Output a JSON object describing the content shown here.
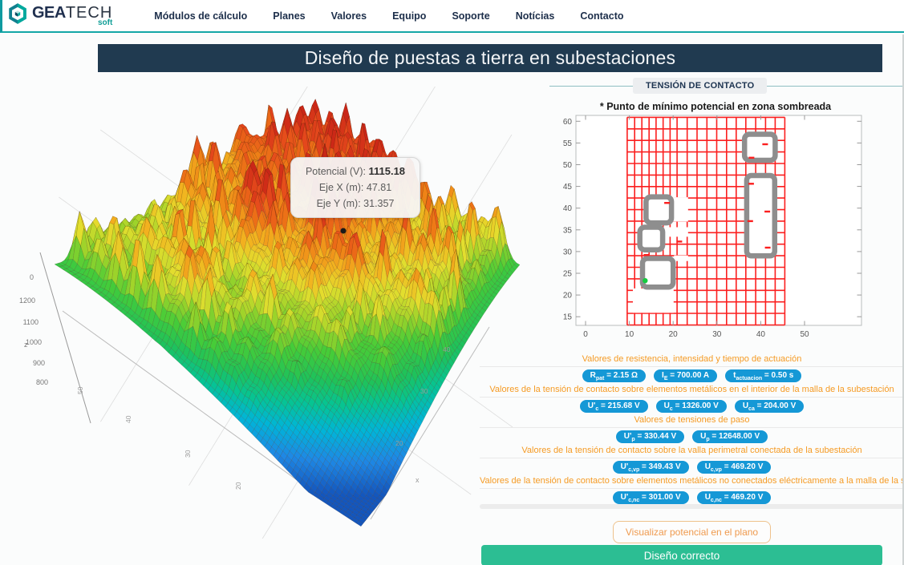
{
  "header": {
    "logo": {
      "bold": "GEA",
      "light": "TECH",
      "soft": "soft"
    },
    "nav": [
      {
        "id": "modulos",
        "label": "Módulos de cálculo"
      },
      {
        "id": "planes",
        "label": "Planes"
      },
      {
        "id": "valores",
        "label": "Valores"
      },
      {
        "id": "equipo",
        "label": "Equipo"
      },
      {
        "id": "soporte",
        "label": "Soporte"
      },
      {
        "id": "noticias",
        "label": "Notícias"
      },
      {
        "id": "contacto",
        "label": "Contacto"
      }
    ]
  },
  "page_title": "Diseño de puestas a tierra en subestaciones",
  "section_label": "TENSIÓN DE CONTACTO",
  "tooltip": {
    "rows": [
      {
        "label": "Potencial (V):",
        "value": "1115.18"
      },
      {
        "label": "Eje X (m):",
        "value": "47.81"
      },
      {
        "label": "Eje Y (m):",
        "value": "31.357"
      }
    ]
  },
  "chart_data": [
    {
      "type": "3d-surface",
      "title": "",
      "z_axis": {
        "label": "z",
        "ticks": [
          "0",
          "1200",
          "1100",
          "1000",
          "900",
          "800"
        ]
      },
      "x_axis": {
        "label": "x",
        "ticks": [
          "40",
          "30",
          "20"
        ]
      },
      "y_axis": {
        "label": "y",
        "ticks": [
          "50",
          "40",
          "30",
          "20"
        ]
      },
      "z_range_displayed": [
        800,
        1200
      ],
      "colormap": "jet (azul-verde-amarillo-naranja-rojo)",
      "hover_point": {
        "potencial_v": 1115.18,
        "eje_x_m": 47.81,
        "eje_y_m": 31.357
      }
    },
    {
      "type": "grid-mesh",
      "title": "* Punto de mínimo potencial en zona sombreada",
      "xlabel": "",
      "ylabel": "",
      "x_ticks": [
        0,
        10,
        20,
        30,
        40,
        50
      ],
      "y_ticks": [
        15,
        20,
        25,
        30,
        35,
        40,
        45,
        50,
        55,
        60
      ],
      "xlim": [
        -2.2,
        63
      ],
      "ylim": [
        13,
        61.5
      ],
      "grid_color": "#fb1f1f",
      "mesh_extent": {
        "x": [
          9.5,
          45.5
        ],
        "y": [
          13.1,
          60.9
        ]
      },
      "mesh_x_lines": [
        9.5,
        11.2,
        12.85,
        14.5,
        16.1,
        17.7,
        19.3,
        20.9,
        23.2,
        25.45,
        27.7,
        29.95,
        32.2,
        34.4,
        36.6,
        38.85,
        41.1,
        43.3,
        45.5
      ],
      "mesh_y_lines": [
        13.1,
        15.76,
        18.41,
        21.07,
        23.72,
        26.38,
        29.03,
        31.69,
        34.34,
        37.0,
        39.65,
        42.31,
        44.96,
        47.62,
        50.27,
        52.93,
        55.58,
        58.24,
        60.9
      ],
      "shaded_rects": [
        {
          "x": 36.3,
          "y": 51.0,
          "w": 7.0,
          "h": 6.0
        },
        {
          "x": 36.8,
          "y": 29.0,
          "w": 6.4,
          "h": 18.5
        },
        {
          "x": 13.8,
          "y": 36.6,
          "w": 5.8,
          "h": 6.0
        },
        {
          "x": 12.4,
          "y": 30.4,
          "w": 5.2,
          "h": 5.2
        },
        {
          "x": 13.0,
          "y": 21.8,
          "w": 7.0,
          "h": 6.6
        }
      ],
      "white_gaps": [
        {
          "x": 10.8,
          "y": 15.9,
          "w": 9.3,
          "h": 5.6
        },
        {
          "x": 19.9,
          "y": 36.9,
          "w": 3.5,
          "h": 5.6
        },
        {
          "x": 17.8,
          "y": 33.4,
          "w": 5.6,
          "h": 2.2
        },
        {
          "x": 20.2,
          "y": 27.8,
          "w": 3.2,
          "h": 1.3
        }
      ],
      "red_marks": [
        {
          "x": 41.0,
          "y": 54.7
        },
        {
          "x": 37.9,
          "y": 51.6
        },
        {
          "x": 37.8,
          "y": 45.6
        },
        {
          "x": 41.5,
          "y": 39.2
        },
        {
          "x": 37.6,
          "y": 37.0
        },
        {
          "x": 41.6,
          "y": 30.9
        },
        {
          "x": 18.6,
          "y": 41.2
        },
        {
          "x": 13.9,
          "y": 29.2
        },
        {
          "x": 21.4,
          "y": 32.3
        }
      ],
      "min_potential_point": {
        "x": 13.6,
        "y": 23.3,
        "color": "#15cb3f"
      }
    }
  ],
  "results_sections": [
    {
      "label": "Valores de resistencia, intensidad y tiempo de actuación",
      "badges": [
        {
          "sym": "R",
          "sub": "pat",
          "val": "= 2.15 Ω"
        },
        {
          "sym": "I",
          "sub": "E",
          "val": "= 700.00 A"
        },
        {
          "sym": "t",
          "sub": "actuacion",
          "val": "= 0.50 s"
        }
      ]
    },
    {
      "label": "Valores de la tensión de contacto sobre elementos metálicos en el interior de la malla de la subestación",
      "badges": [
        {
          "sym": "U'",
          "sub": "c",
          "val": "= 215.68 V"
        },
        {
          "sym": "U",
          "sub": "c",
          "val": "= 1326.00 V"
        },
        {
          "sym": "U",
          "sub": "ca",
          "val": "= 204.00 V"
        }
      ]
    },
    {
      "label": "Valores de tensiones de paso",
      "badges": [
        {
          "sym": "U'",
          "sub": "p",
          "val": "= 330.44 V"
        },
        {
          "sym": "U",
          "sub": "p",
          "val": "= 12648.00 V"
        }
      ]
    },
    {
      "label": "Valores de la tensión de contacto sobre la valla perimetral conectada de la subestación",
      "badges": [
        {
          "sym": "U'",
          "sub": "c,vp",
          "val": "= 349.43 V"
        },
        {
          "sym": "U",
          "sub": "c,vp",
          "val": "= 469.20 V"
        }
      ]
    },
    {
      "label": "Valores de la tensión de contacto sobre elementos metálicos no conectados eléctricamente a la malla de la subestación",
      "badges": [
        {
          "sym": "U'",
          "sub": "c,nc",
          "val": "= 301.00 V"
        },
        {
          "sym": "U",
          "sub": "c,nc",
          "val": "= 469.20 V"
        }
      ]
    }
  ],
  "buttons": {
    "visualize": "Visualizar potencial en el plano",
    "correct": "Diseño correcto"
  },
  "colors": {
    "accent_teal": "#14a7a7",
    "navy": "#203a50",
    "orange_label": "#f59b25",
    "badge_blue": "#1598d6",
    "button_green": "#2cbe93",
    "button_orange_text": "#ef9a4e",
    "grid_red": "#fb1f1f",
    "rect_gray": "#8e8e8e",
    "min_point_green": "#15cb3f"
  }
}
